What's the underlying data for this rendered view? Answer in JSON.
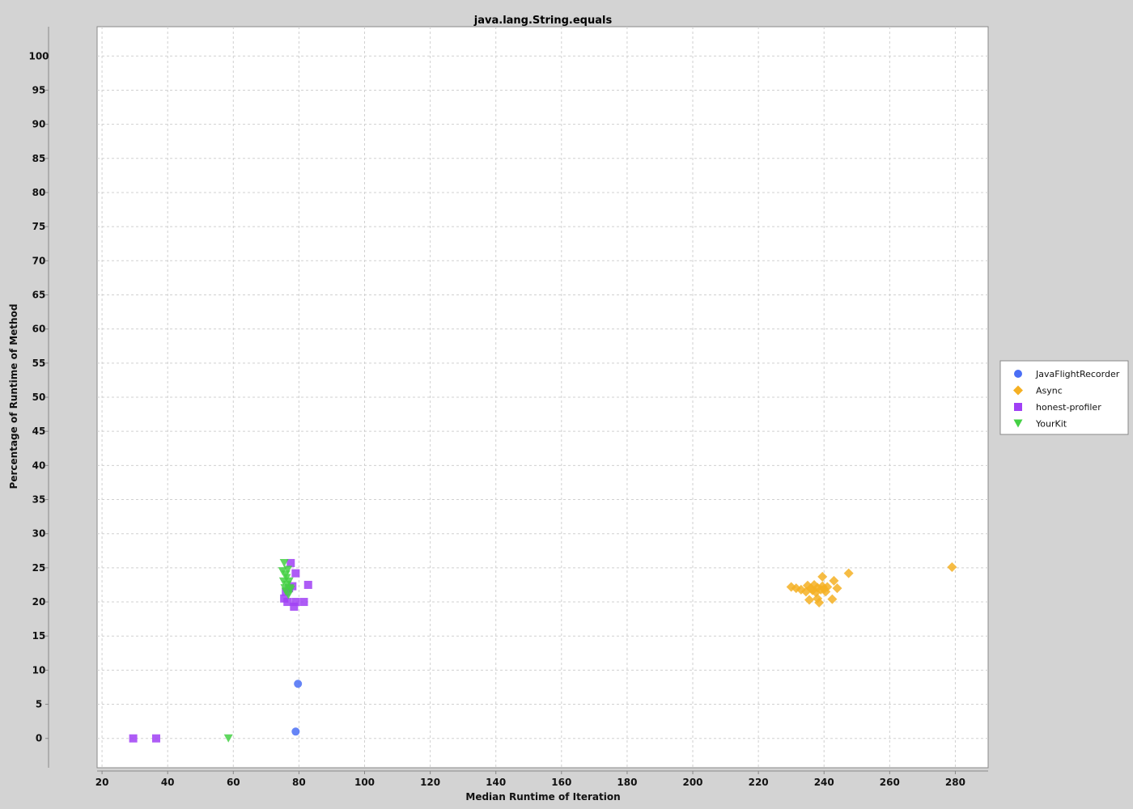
{
  "chart_data": {
    "type": "scatter",
    "title": "java.lang.String.equals",
    "xlabel": "Median Runtime of Iteration",
    "ylabel": "Percentage of Runtime of Method",
    "xlim": [
      18.5,
      290
    ],
    "ylim": [
      -4.3,
      104.3
    ],
    "xticks": [
      20,
      40,
      60,
      80,
      100,
      120,
      140,
      160,
      180,
      200,
      220,
      240,
      260,
      280
    ],
    "yticks": [
      0,
      5,
      10,
      15,
      20,
      25,
      30,
      35,
      40,
      45,
      50,
      55,
      60,
      65,
      70,
      75,
      80,
      85,
      90,
      95,
      100
    ],
    "grid": true,
    "legend_position": "right",
    "series": [
      {
        "name": "JavaFlightRecorder",
        "marker": "circle",
        "color": "#4a6ef5",
        "points": [
          [
            79.7,
            8.0
          ],
          [
            79.0,
            1.0
          ]
        ]
      },
      {
        "name": "Async",
        "marker": "diamond",
        "color": "#f5b023",
        "points": [
          [
            230.0,
            22.2
          ],
          [
            231.5,
            22.0
          ],
          [
            233.0,
            21.8
          ],
          [
            234.5,
            21.5
          ],
          [
            235.0,
            22.4
          ],
          [
            235.5,
            20.3
          ],
          [
            236.0,
            22.0
          ],
          [
            236.5,
            21.7
          ],
          [
            237.0,
            22.5
          ],
          [
            237.5,
            21.4
          ],
          [
            238.0,
            22.1
          ],
          [
            238.0,
            20.5
          ],
          [
            238.5,
            19.9
          ],
          [
            239.0,
            21.8
          ],
          [
            239.5,
            22.3
          ],
          [
            239.5,
            23.7
          ],
          [
            240.0,
            21.9
          ],
          [
            240.5,
            21.5
          ],
          [
            241.0,
            22.2
          ],
          [
            242.5,
            20.4
          ],
          [
            243.0,
            23.1
          ],
          [
            244.0,
            22.0
          ],
          [
            247.5,
            24.2
          ],
          [
            279.0,
            25.1
          ]
        ]
      },
      {
        "name": "honest-profiler",
        "marker": "square",
        "color": "#a040f5",
        "points": [
          [
            29.5,
            0.0
          ],
          [
            36.5,
            0.0
          ],
          [
            75.5,
            20.5
          ],
          [
            76.0,
            21.5
          ],
          [
            76.5,
            20.0
          ],
          [
            77.0,
            22.0
          ],
          [
            77.5,
            25.7
          ],
          [
            78.0,
            22.3
          ],
          [
            78.5,
            19.3
          ],
          [
            79.0,
            20.0
          ],
          [
            79.0,
            24.2
          ],
          [
            81.5,
            20.0
          ],
          [
            82.8,
            22.5
          ]
        ]
      },
      {
        "name": "YourKit",
        "marker": "triangle-down",
        "color": "#44d044",
        "points": [
          [
            58.5,
            0.0
          ],
          [
            75.0,
            24.5
          ],
          [
            75.3,
            23.0
          ],
          [
            75.5,
            25.7
          ],
          [
            75.7,
            22.0
          ],
          [
            76.0,
            24.0
          ],
          [
            76.0,
            21.5
          ],
          [
            76.2,
            23.5
          ],
          [
            76.4,
            22.5
          ],
          [
            76.6,
            24.7
          ],
          [
            76.8,
            21.0
          ],
          [
            77.0,
            23.0
          ],
          [
            77.2,
            22.0
          ],
          [
            77.5,
            21.8
          ]
        ]
      }
    ]
  }
}
